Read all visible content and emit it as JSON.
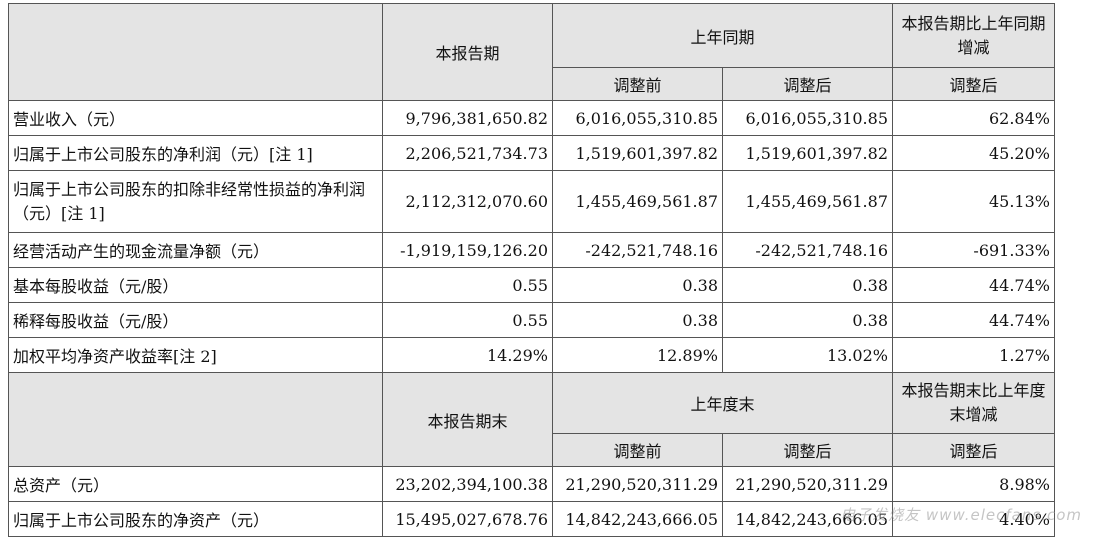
{
  "section1": {
    "h_current": "本报告期",
    "h_prev": "上年同期",
    "h_change": "本报告期比上年同期增减",
    "h_before": "调整前",
    "h_after": "调整后",
    "h_change_after": "调整后",
    "rows": [
      {
        "label": "营业收入（元）",
        "current": "9,796,381,650.82",
        "before": "6,016,055,310.85",
        "after": "6,016,055,310.85",
        "change": "62.84%"
      },
      {
        "label": "归属于上市公司股东的净利润（元）[注 1]",
        "current": "2,206,521,734.73",
        "before": "1,519,601,397.82",
        "after": "1,519,601,397.82",
        "change": "45.20%"
      },
      {
        "label": "归属于上市公司股东的扣除非经常性损益的净利润（元）[注 1]",
        "current": "2,112,312,070.60",
        "before": "1,455,469,561.87",
        "after": "1,455,469,561.87",
        "change": "45.13%"
      },
      {
        "label": "经营活动产生的现金流量净额（元）",
        "current": "-1,919,159,126.20",
        "before": "-242,521,748.16",
        "after": "-242,521,748.16",
        "change": "-691.33%"
      },
      {
        "label": "基本每股收益（元/股）",
        "current": "0.55",
        "before": "0.38",
        "after": "0.38",
        "change": "44.74%"
      },
      {
        "label": "稀释每股收益（元/股）",
        "current": "0.55",
        "before": "0.38",
        "after": "0.38",
        "change": "44.74%"
      },
      {
        "label": "加权平均净资产收益率[注 2]",
        "current": "14.29%",
        "before": "12.89%",
        "after": "13.02%",
        "change": "1.27%"
      }
    ]
  },
  "section2": {
    "h_current": "本报告期末",
    "h_prev": "上年度末",
    "h_change": "本报告期末比上年度末增减",
    "h_before": "调整前",
    "h_after": "调整后",
    "h_change_after": "调整后",
    "rows": [
      {
        "label": "总资产（元）",
        "current": "23,202,394,100.38",
        "before": "21,290,520,311.29",
        "after": "21,290,520,311.29",
        "change": "8.98%"
      },
      {
        "label": "归属于上市公司股东的净资产（元）",
        "current": "15,495,027,678.76",
        "before": "14,842,243,666.05",
        "after": "14,842,243,666.05",
        "change": "4.40%"
      }
    ]
  },
  "watermark": "电子发烧友 www.elecfans.com"
}
